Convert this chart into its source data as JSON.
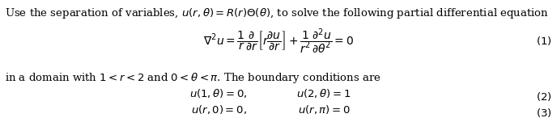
{
  "figsize": [
    6.88,
    1.72
  ],
  "dpi": 100,
  "bg_color": "white",
  "font_color": "black",
  "line1": "Use the separation of variables, $u(r, \\theta) = R(r)\\Theta(\\theta)$, to solve the following partial differential equation",
  "eq1": "$\\nabla^2 u = \\dfrac{1}{r}\\dfrac{\\partial}{\\partial r}\\left[r\\dfrac{\\partial u}{\\partial r}\\right] + \\dfrac{1}{r^2}\\dfrac{\\partial^2 u}{\\partial \\theta^2} = 0$",
  "eq1_label": "$(1)$",
  "line2": "in a domain with $1 < r < 2$ and $0 < \\theta < \\pi$. The boundary conditions are",
  "bc1_left": "$u(1, \\theta) = 0,$",
  "bc1_right": "$u(2, \\theta) = 1$",
  "bc1_label": "$(2)$",
  "bc2_left": "$u(r, 0) = 0,$",
  "bc2_right": "$u(r, \\pi) = 0$",
  "bc2_label": "$(3)$",
  "fontsize_text": 9.5,
  "fontsize_eq": 10.0,
  "fontsize_label": 9.5
}
